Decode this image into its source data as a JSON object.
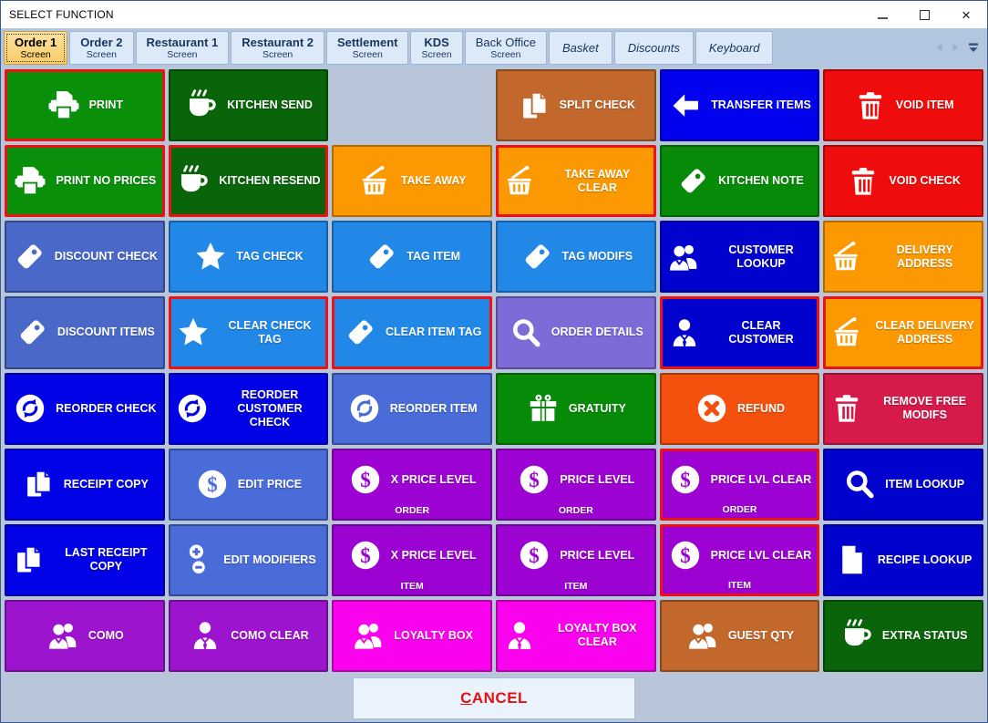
{
  "window": {
    "title": "SELECT FUNCTION",
    "controls": [
      "minimize",
      "maximize",
      "close"
    ]
  },
  "tab_bar": {
    "tabs": [
      {
        "label": "Order 1",
        "sublabel": "Screen",
        "active": true
      },
      {
        "label": "Order 2",
        "sublabel": "Screen"
      },
      {
        "label": "Restaurant 1",
        "sublabel": "Screen"
      },
      {
        "label": "Restaurant 2",
        "sublabel": "Screen"
      },
      {
        "label": "Settlement",
        "sublabel": "Screen"
      },
      {
        "label": "KDS",
        "sublabel": "Screen"
      },
      {
        "label": "Back Office",
        "sublabel": "Screen",
        "plain": true
      },
      {
        "label": "Basket",
        "italic": true
      },
      {
        "label": "Discounts",
        "italic": true
      },
      {
        "label": "Keyboard",
        "italic": true
      }
    ],
    "scroll_icons": [
      "left-arrow",
      "right-arrow",
      "double-chevron-down"
    ]
  },
  "grid": {
    "columns": 6,
    "buttons": [
      {
        "label": "PRINT",
        "icon": "printer",
        "color": "#0A8F0A",
        "alert": true
      },
      {
        "label": "KITCHEN SEND",
        "icon": "coffee",
        "color": "#0A640A"
      },
      {
        "empty": true
      },
      {
        "label": "SPLIT CHECK",
        "icon": "pages",
        "color": "#C2682D"
      },
      {
        "label": "TRANSFER ITEMS",
        "icon": "arrow-left",
        "color": "#0202EE"
      },
      {
        "label": "VOID ITEM",
        "icon": "trash",
        "color": "#EE0C0C"
      },
      {
        "label": "PRINT NO PRICES",
        "icon": "printer",
        "color": "#0A8F0A",
        "alert": true
      },
      {
        "label": "KITCHEN RESEND",
        "icon": "coffee",
        "color": "#0A640A",
        "alert": true
      },
      {
        "label": "TAKE AWAY",
        "icon": "basket",
        "color": "#FC9800"
      },
      {
        "label": "TAKE AWAY CLEAR",
        "icon": "basket",
        "color": "#FC9800",
        "alert": true
      },
      {
        "label": "KITCHEN NOTE",
        "icon": "tag",
        "color": "#078A07"
      },
      {
        "label": "VOID CHECK",
        "icon": "trash",
        "color": "#EE0C0C"
      },
      {
        "label": "DISCOUNT CHECK",
        "icon": "tag",
        "color": "#4A68C8"
      },
      {
        "label": "TAG CHECK",
        "icon": "star",
        "color": "#2288E8"
      },
      {
        "label": "TAG ITEM",
        "icon": "tag",
        "color": "#2288E8"
      },
      {
        "label": "TAG MODIFS",
        "icon": "tag",
        "color": "#2288E8"
      },
      {
        "label": "CUSTOMER LOOKUP",
        "icon": "people",
        "color": "#0202CE"
      },
      {
        "label": "DELIVERY ADDRESS",
        "icon": "basket",
        "color": "#FC9800"
      },
      {
        "label": "DISCOUNT ITEMS",
        "icon": "tag",
        "color": "#4A68C8"
      },
      {
        "label": "CLEAR CHECK TAG",
        "icon": "star",
        "color": "#2288E8",
        "alert": true
      },
      {
        "label": "CLEAR ITEM TAG",
        "icon": "tag",
        "color": "#2288E8",
        "alert": true
      },
      {
        "label": "ORDER DETAILS",
        "icon": "magnifier",
        "color": "#7D6BD8"
      },
      {
        "label": "CLEAR CUSTOMER",
        "icon": "person",
        "color": "#0202CE",
        "alert": true
      },
      {
        "label": "CLEAR DELIVERY ADDRESS",
        "icon": "basket",
        "color": "#FC9800",
        "alert": true
      },
      {
        "label": "REORDER CHECK",
        "icon": "reorder",
        "color": "#0202E6"
      },
      {
        "label": "REORDER CUSTOMER CHECK",
        "icon": "reorder",
        "color": "#0202E6"
      },
      {
        "label": "REORDER ITEM",
        "icon": "reorder",
        "color": "#4A6CD8"
      },
      {
        "label": "GRATUITY",
        "icon": "gift",
        "color": "#078A07"
      },
      {
        "label": "REFUND",
        "icon": "x-circle",
        "color": "#F4510E"
      },
      {
        "label": "REMOVE FREE MODIFS",
        "icon": "trash",
        "color": "#D61A4A"
      },
      {
        "label": "RECEIPT COPY",
        "icon": "pages",
        "color": "#0202E6"
      },
      {
        "label": "EDIT PRICE",
        "icon": "dollar",
        "color": "#4A6CD8"
      },
      {
        "label": "X PRICE LEVEL",
        "sublabel": "ORDER",
        "icon": "dollar",
        "color": "#9C02D2"
      },
      {
        "label": "PRICE LEVEL",
        "sublabel": "ORDER",
        "icon": "dollar",
        "color": "#9C02D2"
      },
      {
        "label": "PRICE LVL CLEAR",
        "sublabel": "ORDER",
        "icon": "dollar",
        "color": "#9C02D2",
        "alert": true
      },
      {
        "label": "ITEM LOOKUP",
        "icon": "magnifier",
        "color": "#0202CE"
      },
      {
        "label": "LAST RECEIPT COPY",
        "icon": "pages",
        "color": "#0202E6"
      },
      {
        "label": "EDIT MODIFIERS",
        "icon": "plus-minus",
        "color": "#4A6CD8"
      },
      {
        "label": "X PRICE LEVEL",
        "sublabel": "ITEM",
        "icon": "dollar",
        "color": "#9C02D2"
      },
      {
        "label": "PRICE LEVEL",
        "sublabel": "ITEM",
        "icon": "dollar",
        "color": "#9C02D2"
      },
      {
        "label": "PRICE LVL CLEAR",
        "sublabel": "ITEM",
        "icon": "dollar",
        "color": "#9C02D2",
        "alert": true
      },
      {
        "label": "RECIPE LOOKUP",
        "icon": "document",
        "color": "#0202CE"
      },
      {
        "label": "COMO",
        "icon": "people",
        "color": "#9C14CE"
      },
      {
        "label": "COMO CLEAR",
        "icon": "person",
        "color": "#9C14CE"
      },
      {
        "label": "LOYALTY BOX",
        "icon": "people",
        "color": "#FA02EE"
      },
      {
        "label": "LOYALTY BOX CLEAR",
        "icon": "person",
        "color": "#FA02EE"
      },
      {
        "label": "GUEST QTY",
        "icon": "people",
        "color": "#C2682D"
      },
      {
        "label": "EXTRA STATUS",
        "icon": "coffee",
        "color": "#0A640A"
      }
    ]
  },
  "cancel_button": {
    "label": "CANCEL"
  },
  "colors": {
    "alert_border": "#EE1111",
    "background": "#B9C5D9",
    "tabbar_background": "#B3C6E0",
    "active_tab": "#F8CC5F",
    "tab_text": "#17365D",
    "cancel_text": "#E01212"
  }
}
